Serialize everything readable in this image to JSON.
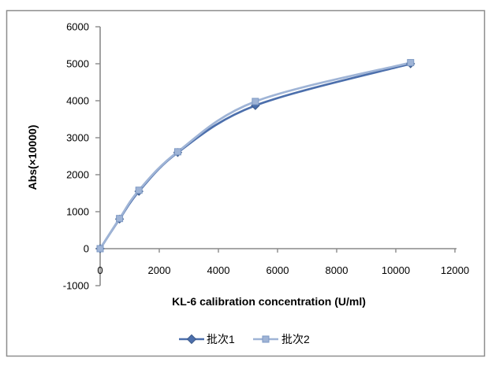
{
  "chart_data": {
    "type": "line",
    "subtype": "smooth-line-with-markers",
    "title": "",
    "xlabel": "KL-6 calibration concentration (U/ml)",
    "ylabel": "Abs(×10000)",
    "x": [
      0,
      656,
      1312,
      2625,
      5250,
      10500
    ],
    "series": [
      {
        "name": "批次1",
        "marker": "diamond",
        "color": "#4C6FAC",
        "marker_stroke": "#3B5A8A",
        "values": [
          0,
          800,
          1550,
          2600,
          3870,
          5000
        ]
      },
      {
        "name": "批次2",
        "marker": "square",
        "color": "#9FB4D6",
        "marker_stroke": "#7E99C4",
        "values": [
          0,
          815,
          1580,
          2620,
          3980,
          5030
        ]
      }
    ],
    "xlim": [
      0,
      12000
    ],
    "ylim": [
      -1000,
      6000
    ],
    "xticks": [
      0,
      2000,
      4000,
      6000,
      8000,
      10000,
      12000
    ],
    "yticks": [
      -1000,
      0,
      1000,
      2000,
      3000,
      4000,
      5000,
      6000
    ],
    "grid": false,
    "legend_position": "bottom"
  },
  "colors": {
    "axis": "#8A8A8A",
    "border": "#8E8E8E",
    "text": "#000000",
    "background": "#FFFFFF"
  }
}
